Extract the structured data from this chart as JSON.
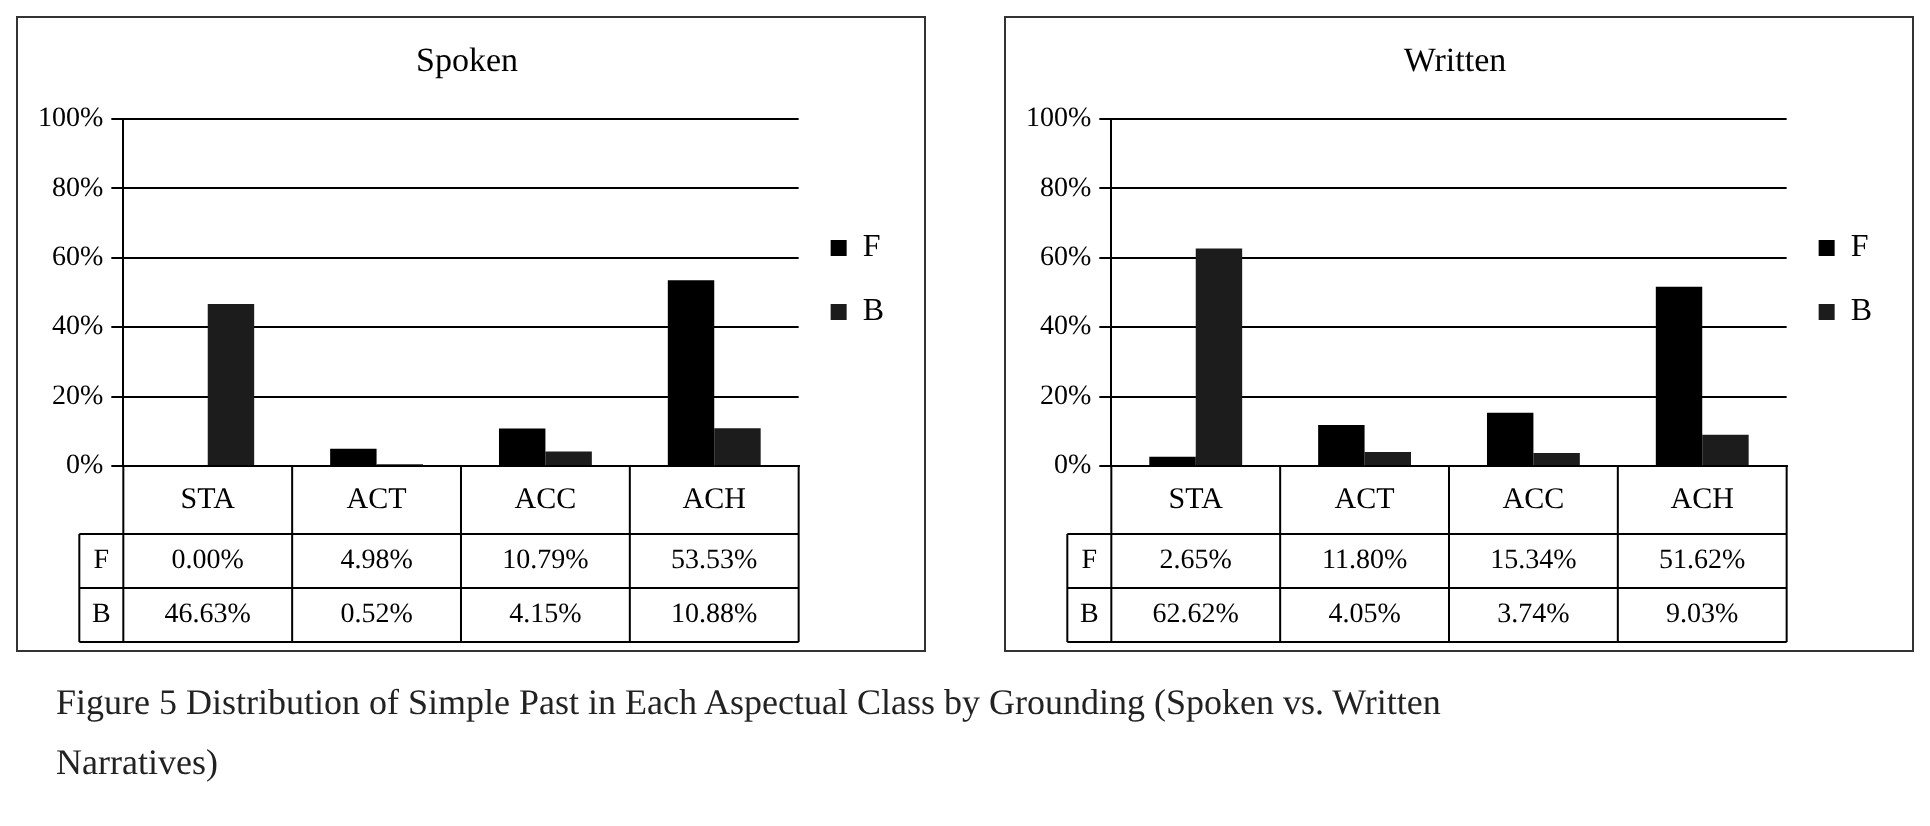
{
  "chart_data": [
    {
      "type": "bar",
      "title": "Spoken",
      "categories": [
        "STA",
        "ACT",
        "ACC",
        "ACH"
      ],
      "series": [
        {
          "name": "F",
          "color": "#000000",
          "values": [
            0,
            4.98,
            10.79,
            53.53
          ],
          "value_labels": [
            "0.00%",
            "4.98%",
            "10.79%",
            "53.53%"
          ]
        },
        {
          "name": "B",
          "color": "#1c1c1c",
          "values": [
            46.63,
            0.52,
            4.15,
            10.88
          ],
          "value_labels": [
            "46.63%",
            "0.52%",
            "4.15%",
            "10.88%"
          ]
        }
      ],
      "ylim": [
        0,
        100
      ],
      "yticks": [
        {
          "value": 0,
          "label": "0%"
        },
        {
          "value": 20,
          "label": "20%"
        },
        {
          "value": 40,
          "label": "40%"
        },
        {
          "value": 60,
          "label": "60%"
        },
        {
          "value": 80,
          "label": "80%"
        },
        {
          "value": 100,
          "label": "100%"
        }
      ],
      "grid": "y",
      "legend": "right",
      "annotations": [
        "Figure 5 Distribution of Simple Past in Each Aspectual Class by Grounding (Spoken vs. Written Narratives)"
      ]
    },
    {
      "type": "bar",
      "title": "Written",
      "categories": [
        "STA",
        "ACT",
        "ACC",
        "ACH"
      ],
      "series": [
        {
          "name": "F",
          "color": "#000000",
          "values": [
            2.65,
            11.8,
            15.34,
            51.62
          ],
          "value_labels": [
            "2.65%",
            "11.80%",
            "15.34%",
            "51.62%"
          ]
        },
        {
          "name": "B",
          "color": "#1c1c1c",
          "values": [
            62.62,
            4.05,
            3.74,
            9.03
          ],
          "value_labels": [
            "62.62%",
            "4.05%",
            "3.74%",
            "9.03%"
          ]
        }
      ],
      "ylim": [
        0,
        100
      ],
      "yticks": [
        {
          "value": 0,
          "label": "0%"
        },
        {
          "value": 20,
          "label": "20%"
        },
        {
          "value": 40,
          "label": "40%"
        },
        {
          "value": 60,
          "label": "60%"
        },
        {
          "value": 80,
          "label": "80%"
        },
        {
          "value": 100,
          "label": "100%"
        }
      ],
      "grid": "y",
      "legend": "right"
    }
  ]
}
